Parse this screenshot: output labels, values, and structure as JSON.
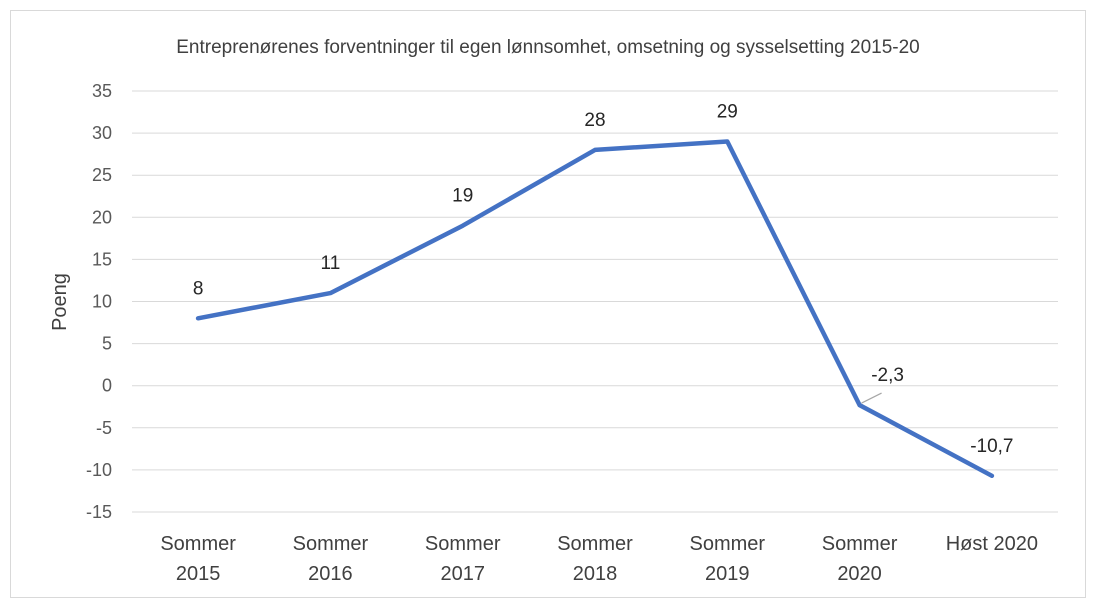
{
  "chart_data": {
    "type": "line",
    "title": "Entreprenørenes forventninger til egen lønnsomhet, omsetning og sysselsetting 2015-20",
    "ylabel": "Poeng",
    "xlabel": "",
    "ylim": [
      -15,
      35
    ],
    "yticks": [
      "35",
      "30",
      "25",
      "20",
      "15",
      "10",
      "5",
      "0",
      "-5",
      "-10",
      "-15"
    ],
    "yticks_values": [
      35,
      30,
      25,
      20,
      15,
      10,
      5,
      0,
      -5,
      -10,
      -15
    ],
    "categories": [
      [
        "Sommer",
        "2015"
      ],
      [
        "Sommer",
        "2016"
      ],
      [
        "Sommer",
        "2017"
      ],
      [
        "Sommer",
        "2018"
      ],
      [
        "Sommer",
        "2019"
      ],
      [
        "Sommer",
        "2020"
      ],
      [
        "Høst 2020"
      ]
    ],
    "values": [
      8,
      11,
      19,
      28,
      29,
      -2.3,
      -10.7
    ],
    "data_labels": [
      "8",
      "11",
      "19",
      "28",
      "29",
      "-2,3",
      "-10,7"
    ],
    "grid": true,
    "legend": "none",
    "line_color": "#4472C4"
  }
}
